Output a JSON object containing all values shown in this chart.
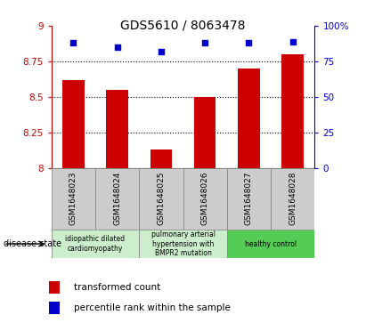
{
  "title": "GDS5610 / 8063478",
  "samples": [
    "GSM1648023",
    "GSM1648024",
    "GSM1648025",
    "GSM1648026",
    "GSM1648027",
    "GSM1648028"
  ],
  "bar_values": [
    8.62,
    8.55,
    8.13,
    8.5,
    8.7,
    8.8
  ],
  "percentile_values": [
    88,
    85,
    82,
    88,
    88,
    89
  ],
  "bar_color": "#cc0000",
  "scatter_color": "#0000cc",
  "ylim_left": [
    8.0,
    9.0
  ],
  "ylim_right": [
    0,
    100
  ],
  "yticks_left": [
    8.0,
    8.25,
    8.5,
    8.75,
    9.0
  ],
  "yticks_right": [
    0,
    25,
    50,
    75,
    100
  ],
  "ytick_labels_left": [
    "8",
    "8.25",
    "8.5",
    "8.75",
    "9"
  ],
  "ytick_labels_right": [
    "0",
    "25",
    "50",
    "75",
    "100%"
  ],
  "legend_bar_label": "transformed count",
  "legend_scatter_label": "percentile rank within the sample",
  "disease_state_label": "disease state",
  "grid_lines": [
    8.25,
    8.5,
    8.75
  ],
  "left_axis_color": "#cc0000",
  "right_axis_color": "#0000cc",
  "group_ranges": [
    [
      0,
      1
    ],
    [
      2,
      3
    ],
    [
      4,
      5
    ]
  ],
  "group_colors": [
    "#cceecc",
    "#cceecc",
    "#55cc55"
  ],
  "group_texts": [
    "idiopathic dilated\ncardiomyopathy",
    "pulmonary arterial\nhypertension with\nBMPR2 mutation",
    "healthy control"
  ],
  "label_bg_color": "#cccccc",
  "bar_width": 0.5,
  "figsize": [
    4.11,
    3.63
  ],
  "dpi": 100
}
